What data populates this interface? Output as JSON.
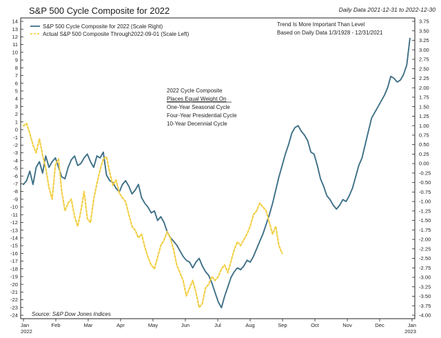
{
  "chart_data": {
    "type": "line",
    "title": "S&P 500 Cycle Composite for 2022",
    "subtitle": "Daily Data 2021-12-31 to 2022-12-30",
    "x_labels": [
      "Jan\n2022",
      "Feb",
      "Mar",
      "Apr",
      "May",
      "Jun",
      "Jul",
      "Aug",
      "Sep",
      "Oct",
      "Nov",
      "Dec",
      "Jan\n2023"
    ],
    "left_axis": {
      "label": "Scale Left",
      "ticks": [
        14,
        13,
        12,
        11,
        10,
        9,
        8,
        7,
        6,
        5,
        4,
        3,
        2,
        1,
        0,
        -1,
        -2,
        -3,
        -4,
        -5,
        -6,
        -7,
        -8,
        -9,
        -10,
        -11,
        -12,
        -13,
        -14,
        -15,
        -16,
        -17,
        -18,
        -19,
        -20,
        -21,
        -22,
        -23,
        -24
      ],
      "ylim": [
        -24,
        14
      ]
    },
    "right_axis": {
      "label": "Scale Right",
      "ticks": [
        "3.75",
        "3.50",
        "3.25",
        "3.00",
        "2.75",
        "2.50",
        "2.25",
        "2.00",
        "1.75",
        "1.50",
        "1.25",
        "1.00",
        "0.75",
        "0.50",
        "0.25",
        "0.00",
        "-0.25",
        "-0.50",
        "-0.75",
        "-1.00",
        "-1.25",
        "-1.50",
        "-1.75",
        "-2.00",
        "-2.25",
        "-2.50",
        "-2.75",
        "-3.00",
        "-3.25",
        "-3.50",
        "-3.75",
        "-4.00"
      ],
      "ylim": [
        -4.0,
        3.75
      ]
    },
    "series": [
      {
        "name": "S&P 500 Cycle Composite for 2022 (Scale Right)",
        "axis": "right",
        "color": "#3d6f86",
        "style": "solid",
        "x": [
          0,
          3,
          6,
          9,
          12,
          15,
          18,
          21,
          24,
          27,
          30,
          33,
          36,
          39,
          42,
          45,
          48,
          51,
          54,
          57,
          60,
          63,
          66,
          69,
          72,
          75,
          78,
          81,
          84,
          87,
          90,
          93,
          96,
          99,
          102,
          105,
          108,
          111,
          114,
          117,
          120,
          123,
          126,
          129,
          132,
          135,
          138,
          141,
          144,
          147,
          150,
          153,
          156,
          159,
          162,
          165,
          168,
          171,
          174,
          177,
          180,
          183,
          186,
          189,
          192,
          195,
          198,
          201,
          204,
          207,
          210,
          213,
          216,
          219,
          222,
          225,
          228,
          231,
          234,
          237,
          240,
          243,
          246,
          249,
          252,
          255,
          258,
          261,
          264,
          267,
          270,
          273,
          276,
          279,
          282,
          285,
          288,
          291,
          294,
          297,
          300,
          303,
          306,
          309,
          312,
          315,
          318,
          321,
          324,
          327,
          330,
          333,
          336,
          339,
          342,
          345,
          348,
          351,
          354,
          357,
          360,
          363
        ],
        "values": [
          -0.55,
          -0.45,
          -0.2,
          -0.55,
          -0.1,
          0.05,
          -0.25,
          0.2,
          -0.1,
          0.05,
          0.15,
          -0.1,
          -0.35,
          -0.4,
          -0.1,
          0.1,
          0.2,
          -0.05,
          0.0,
          0.15,
          0.25,
          0.05,
          -0.1,
          0.2,
          0.15,
          0.3,
          -0.3,
          -0.45,
          -0.5,
          -0.65,
          -0.75,
          -0.55,
          -0.45,
          -0.6,
          -0.8,
          -0.7,
          -0.55,
          -0.9,
          -1.05,
          -1.15,
          -1.3,
          -1.25,
          -1.5,
          -1.4,
          -1.55,
          -1.8,
          -1.95,
          -2.05,
          -2.15,
          -2.3,
          -2.45,
          -2.55,
          -2.6,
          -2.75,
          -2.6,
          -2.5,
          -2.7,
          -2.85,
          -2.95,
          -3.15,
          -3.4,
          -3.65,
          -3.8,
          -3.5,
          -3.25,
          -3.0,
          -2.85,
          -2.75,
          -2.8,
          -2.7,
          -2.55,
          -2.6,
          -2.45,
          -2.25,
          -2.05,
          -1.85,
          -1.6,
          -1.35,
          -1.05,
          -0.7,
          -0.35,
          -0.05,
          0.25,
          0.5,
          0.8,
          0.95,
          1.0,
          0.85,
          0.75,
          0.6,
          0.3,
          0.25,
          -0.05,
          -0.4,
          -0.6,
          -0.85,
          -0.95,
          -1.1,
          -1.2,
          -1.1,
          -0.95,
          -1.0,
          -0.85,
          -0.65,
          -0.35,
          -0.05,
          0.15,
          0.5,
          0.85,
          1.2,
          1.35,
          1.5,
          1.65,
          1.8,
          2.0,
          2.3,
          2.25,
          2.15,
          2.2,
          2.35,
          2.6,
          3.3
        ]
      },
      {
        "name": "Actual S&P 500 Composite Through2022-09-01 (Scale Left)",
        "axis": "left",
        "color": "#f2cf46",
        "style": "dashed",
        "x": [
          0,
          3,
          6,
          9,
          12,
          15,
          18,
          21,
          24,
          27,
          30,
          33,
          36,
          39,
          42,
          45,
          48,
          51,
          54,
          57,
          60,
          63,
          66,
          69,
          72,
          75,
          78,
          81,
          84,
          87,
          90,
          93,
          96,
          99,
          102,
          105,
          108,
          111,
          114,
          117,
          120,
          123,
          126,
          129,
          132,
          135,
          138,
          141,
          144,
          147,
          150,
          153,
          156,
          159,
          162,
          165,
          168,
          171,
          174,
          177,
          180,
          183,
          186,
          189,
          192,
          195,
          198,
          201,
          204,
          207,
          210,
          213,
          216,
          219,
          222,
          225,
          228,
          231,
          234,
          237,
          240,
          243
        ],
        "values": [
          0.5,
          0.8,
          -0.5,
          -2.0,
          -3.0,
          -1.2,
          -3.3,
          -5.0,
          -7.5,
          -9.0,
          -4.5,
          -3.8,
          -8.0,
          -10.5,
          -9.5,
          -9.0,
          -11.2,
          -12.5,
          -10.5,
          -8.0,
          -11.5,
          -12.0,
          -9.0,
          -7.0,
          -5.2,
          -3.8,
          -3.5,
          -5.5,
          -7.2,
          -6.5,
          -8.2,
          -8.8,
          -9.3,
          -11.0,
          -12.5,
          -13.0,
          -14.0,
          -13.5,
          -15.2,
          -16.5,
          -17.5,
          -18.0,
          -16.5,
          -15.0,
          -14.3,
          -13.2,
          -14.0,
          -15.5,
          -17.5,
          -18.5,
          -19.5,
          -21.5,
          -20.5,
          -19.5,
          -21.0,
          -23.0,
          -22.5,
          -20.5,
          -20.0,
          -19.0,
          -19.5,
          -19.0,
          -18.0,
          -17.5,
          -18.5,
          -17.0,
          -15.5,
          -14.5,
          -15.0,
          -14.2,
          -13.5,
          -12.5,
          -11.0,
          -10.5,
          -9.5,
          -10.0,
          -10.5,
          -12.0,
          -13.5,
          -12.5,
          -15.0,
          -16.0
        ]
      }
    ],
    "x_range": [
      0,
      365
    ],
    "legend": [
      "S&P 500 Cycle Composite for 2022 (Scale Right)",
      "Actual S&P 500 Composite Through2022-09-01 (Scale Left)"
    ],
    "legend_position": "top-left",
    "annotations": {
      "trend_note": [
        "Trend Is More Important Than Level",
        "Based on Daily Data 1/3/1928 - 12/31/2021"
      ],
      "composite_note": [
        "2022 Cycle Composite",
        "Places Equal Weight On",
        "One-Year Seasonal Cycle",
        "Four-Year Presidential Cycle",
        "10-Year Decennial Cycle"
      ],
      "source": "Source:   S&P Dow Jones Indices"
    },
    "grid": false
  }
}
